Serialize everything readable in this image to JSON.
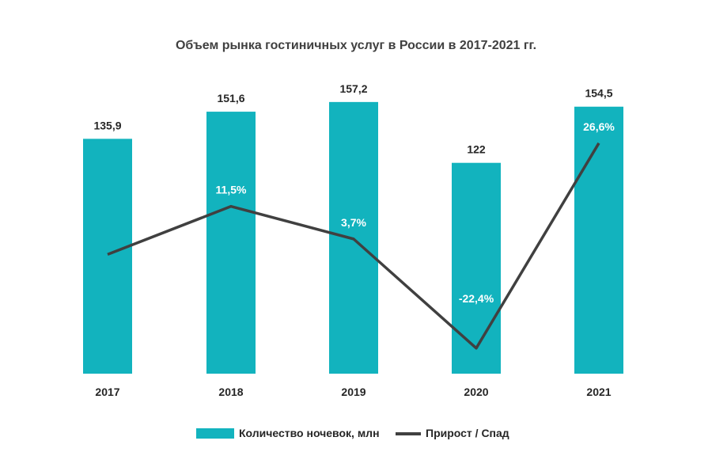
{
  "chart_data": {
    "type": "bar",
    "title": "Объем рынка гостиничных услуг в России в 2017-2021 гг.",
    "categories": [
      "2017",
      "2018",
      "2019",
      "2020",
      "2021"
    ],
    "series": [
      {
        "name": "Количество ночевок, млн",
        "type": "bar",
        "values": [
          135.9,
          151.6,
          157.2,
          122,
          154.5
        ],
        "labels": [
          "135,9",
          "151,6",
          "157,2",
          "122",
          "154,5"
        ],
        "color": "#12B3BE"
      },
      {
        "name": "Прирост / Спад",
        "type": "line",
        "values": [
          null,
          11.5,
          3.7,
          -22.4,
          26.6
        ],
        "labels": [
          "",
          "11,5%",
          "3,7%",
          "-22,4%",
          "26,6%"
        ],
        "color": "#404040"
      }
    ],
    "line_start_value": 0,
    "bar_axis_range": [
      0,
      175
    ],
    "line_axis_range": [
      -30,
      40
    ],
    "legend": "bottom",
    "grid": false
  },
  "colors": {
    "bar": "#12B3BE",
    "line": "#404040",
    "title": "#404040",
    "text": "#262626"
  }
}
